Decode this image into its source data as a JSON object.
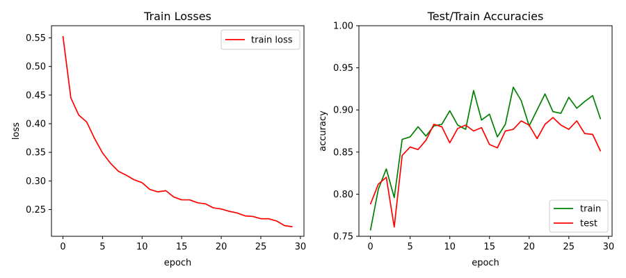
{
  "chart_data": [
    {
      "type": "line",
      "title": "Train Losses",
      "xlabel": "epoch",
      "ylabel": "loss",
      "xlim": [
        -1.45,
        30.45
      ],
      "ylim": [
        0.2033,
        0.5712
      ],
      "xticks": [
        0,
        5,
        10,
        15,
        20,
        25,
        30
      ],
      "yticks": [
        0.25,
        0.3,
        0.35,
        0.4,
        0.45,
        0.5,
        0.55
      ],
      "ytick_decimals": 2,
      "grid": false,
      "legend": "upper-right",
      "x": [
        0,
        1,
        2,
        3,
        4,
        5,
        6,
        7,
        8,
        9,
        10,
        11,
        12,
        13,
        14,
        15,
        16,
        17,
        18,
        19,
        20,
        21,
        22,
        23,
        24,
        25,
        26,
        27,
        28,
        29
      ],
      "series": [
        {
          "name": "train loss",
          "color": "#ff0000",
          "values": [
            0.553,
            0.445,
            0.415,
            0.403,
            0.374,
            0.349,
            0.331,
            0.317,
            0.31,
            0.302,
            0.297,
            0.285,
            0.281,
            0.283,
            0.272,
            0.267,
            0.267,
            0.262,
            0.26,
            0.253,
            0.251,
            0.247,
            0.244,
            0.239,
            0.238,
            0.234,
            0.234,
            0.23,
            0.222,
            0.22
          ]
        }
      ]
    },
    {
      "type": "line",
      "title": "Test/Train Accuracies",
      "xlabel": "epoch",
      "ylabel": "accuracy",
      "xlim": [
        -1.45,
        30.45
      ],
      "ylim": [
        0.75,
        1.0
      ],
      "xticks": [
        0,
        5,
        10,
        15,
        20,
        25,
        30
      ],
      "yticks": [
        0.75,
        0.8,
        0.85,
        0.9,
        0.95,
        1.0
      ],
      "ytick_decimals": 2,
      "grid": false,
      "legend": "lower-right",
      "x": [
        0,
        1,
        2,
        3,
        4,
        5,
        6,
        7,
        8,
        9,
        10,
        11,
        12,
        13,
        14,
        15,
        16,
        17,
        18,
        19,
        20,
        21,
        22,
        23,
        24,
        25,
        26,
        27,
        28,
        29
      ],
      "series": [
        {
          "name": "train",
          "color": "#008000",
          "values": [
            0.757,
            0.806,
            0.83,
            0.796,
            0.865,
            0.868,
            0.88,
            0.869,
            0.881,
            0.883,
            0.899,
            0.882,
            0.877,
            0.923,
            0.888,
            0.895,
            0.868,
            0.883,
            0.927,
            0.911,
            0.881,
            0.9,
            0.919,
            0.898,
            0.896,
            0.915,
            0.902,
            0.91,
            0.917,
            0.889
          ]
        },
        {
          "name": "test",
          "color": "#ff0000",
          "values": [
            0.788,
            0.812,
            0.82,
            0.761,
            0.846,
            0.856,
            0.853,
            0.864,
            0.883,
            0.88,
            0.861,
            0.878,
            0.882,
            0.875,
            0.879,
            0.859,
            0.855,
            0.875,
            0.877,
            0.887,
            0.882,
            0.866,
            0.883,
            0.891,
            0.882,
            0.877,
            0.887,
            0.872,
            0.871,
            0.851
          ]
        }
      ]
    }
  ]
}
